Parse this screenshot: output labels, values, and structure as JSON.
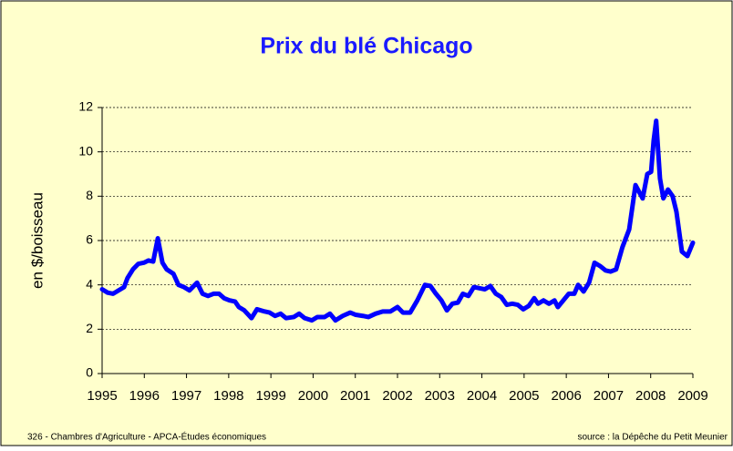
{
  "chart_data": {
    "type": "line",
    "title": "Prix du blé Chicago",
    "y_label": "en $/boisseau",
    "footer_left": "326 - Chambres d'Agriculture - APCA-Études économiques",
    "footer_right": "source : la Dépêche du Petit Meunier",
    "xlim": [
      1995,
      2009
    ],
    "xticks": [
      1995,
      1996,
      1997,
      1998,
      1999,
      2000,
      2001,
      2002,
      2003,
      2004,
      2005,
      2006,
      2007,
      2008,
      2009
    ],
    "ylim": [
      0,
      12
    ],
    "yticks": [
      0,
      2,
      4,
      6,
      8,
      10,
      12
    ],
    "grid": true,
    "series": [
      {
        "color": "#0000ff",
        "x": [
          1995.0,
          1995.13,
          1995.26,
          1995.39,
          1995.52,
          1995.6,
          1995.73,
          1995.86,
          1995.99,
          1996.1,
          1996.21,
          1996.32,
          1996.43,
          1996.53,
          1996.69,
          1996.81,
          1996.94,
          1997.07,
          1997.25,
          1997.38,
          1997.51,
          1997.64,
          1997.77,
          1997.89,
          1998.02,
          1998.15,
          1998.24,
          1998.37,
          1998.54,
          1998.67,
          1998.85,
          1998.97,
          1999.1,
          1999.23,
          1999.36,
          1999.54,
          1999.67,
          1999.8,
          1999.97,
          2000.1,
          2000.27,
          2000.4,
          2000.53,
          2000.7,
          2000.88,
          2001.01,
          2001.18,
          2001.31,
          2001.48,
          2001.65,
          2001.83,
          2002.0,
          2002.13,
          2002.3,
          2002.47,
          2002.65,
          2002.78,
          2002.91,
          2003.04,
          2003.17,
          2003.3,
          2003.43,
          2003.55,
          2003.68,
          2003.81,
          2003.94,
          2004.07,
          2004.2,
          2004.33,
          2004.46,
          2004.59,
          2004.72,
          2004.85,
          2004.98,
          2005.11,
          2005.24,
          2005.33,
          2005.46,
          2005.59,
          2005.72,
          2005.8,
          2005.93,
          2006.06,
          2006.19,
          2006.28,
          2006.41,
          2006.54,
          2006.67,
          2006.8,
          2006.93,
          2007.05,
          2007.18,
          2007.33,
          2007.49,
          2007.64,
          2007.81,
          2007.92,
          2008.01,
          2008.07,
          2008.13,
          2008.22,
          2008.3,
          2008.41,
          2008.52,
          2008.61,
          2008.74,
          2008.87,
          2009.0
        ],
        "values": [
          3.8,
          3.65,
          3.6,
          3.75,
          3.9,
          4.3,
          4.7,
          4.95,
          5.0,
          5.1,
          5.05,
          6.1,
          5.0,
          4.7,
          4.5,
          4.0,
          3.9,
          3.75,
          4.1,
          3.6,
          3.5,
          3.6,
          3.6,
          3.4,
          3.3,
          3.25,
          3.0,
          2.85,
          2.5,
          2.9,
          2.8,
          2.75,
          2.6,
          2.7,
          2.5,
          2.55,
          2.7,
          2.5,
          2.4,
          2.55,
          2.55,
          2.7,
          2.4,
          2.6,
          2.75,
          2.65,
          2.6,
          2.55,
          2.7,
          2.8,
          2.8,
          3.0,
          2.75,
          2.75,
          3.3,
          4.0,
          3.95,
          3.6,
          3.3,
          2.85,
          3.15,
          3.2,
          3.6,
          3.5,
          3.9,
          3.85,
          3.8,
          3.95,
          3.6,
          3.45,
          3.1,
          3.15,
          3.1,
          2.9,
          3.05,
          3.4,
          3.15,
          3.3,
          3.15,
          3.3,
          3.0,
          3.3,
          3.6,
          3.6,
          4.0,
          3.7,
          4.1,
          5.0,
          4.85,
          4.65,
          4.6,
          4.7,
          5.7,
          6.5,
          8.5,
          7.9,
          9.0,
          9.1,
          10.5,
          11.4,
          8.8,
          7.9,
          8.3,
          8.0,
          7.3,
          5.5,
          5.3,
          5.9
        ]
      }
    ]
  }
}
